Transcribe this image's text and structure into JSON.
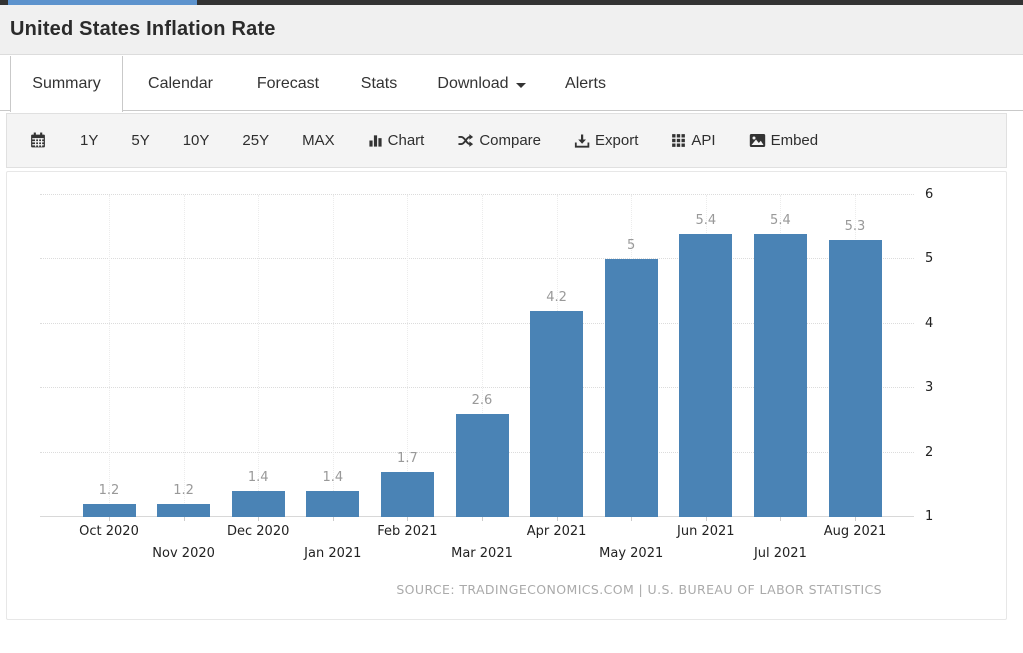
{
  "window": {
    "top_strip_accent_color": "#5d93cd",
    "top_strip_base_color": "#333333"
  },
  "header": {
    "title": "United States Inflation Rate"
  },
  "tabs": [
    {
      "label": "Summary",
      "active": true
    },
    {
      "label": "Calendar",
      "active": false
    },
    {
      "label": "Forecast",
      "active": false
    },
    {
      "label": "Stats",
      "active": false
    },
    {
      "label": "Download",
      "active": false,
      "has_dropdown": true
    },
    {
      "label": "Alerts",
      "active": false
    }
  ],
  "toolbar": {
    "ranges": [
      "1Y",
      "5Y",
      "10Y",
      "25Y",
      "MAX"
    ],
    "actions": [
      {
        "icon": "bar-chart-icon",
        "label": "Chart"
      },
      {
        "icon": "shuffle-icon",
        "label": "Compare"
      },
      {
        "icon": "download-icon",
        "label": "Export"
      },
      {
        "icon": "grid-icon",
        "label": "API"
      },
      {
        "icon": "image-icon",
        "label": "Embed"
      }
    ]
  },
  "chart_data": {
    "type": "bar",
    "title": "",
    "categories": [
      "Oct 2020",
      "Nov 2020",
      "Dec 2020",
      "Jan 2021",
      "Feb 2021",
      "Mar 2021",
      "Apr 2021",
      "May 2021",
      "Jun 2021",
      "Jul 2021",
      "Aug 2021"
    ],
    "values": [
      1.2,
      1.2,
      1.4,
      1.4,
      1.7,
      2.6,
      4.2,
      5,
      5.4,
      5.4,
      5.3
    ],
    "value_labels": [
      "1.2",
      "1.2",
      "1.4",
      "1.4",
      "1.7",
      "2.6",
      "4.2",
      "5",
      "5.4",
      "5.4",
      "5.3"
    ],
    "xlabel": "",
    "ylabel": "",
    "yticks": [
      1,
      2,
      3,
      4,
      5,
      6
    ],
    "ylim": [
      1,
      6.15
    ],
    "y_axis_side": "right",
    "grid": true,
    "legend_position": "none",
    "bar_color": "#4a83b5",
    "value_label_color": "#999999",
    "source": "SOURCE: TRADINGECONOMICS.COM | U.S. BUREAU OF LABOR STATISTICS"
  }
}
